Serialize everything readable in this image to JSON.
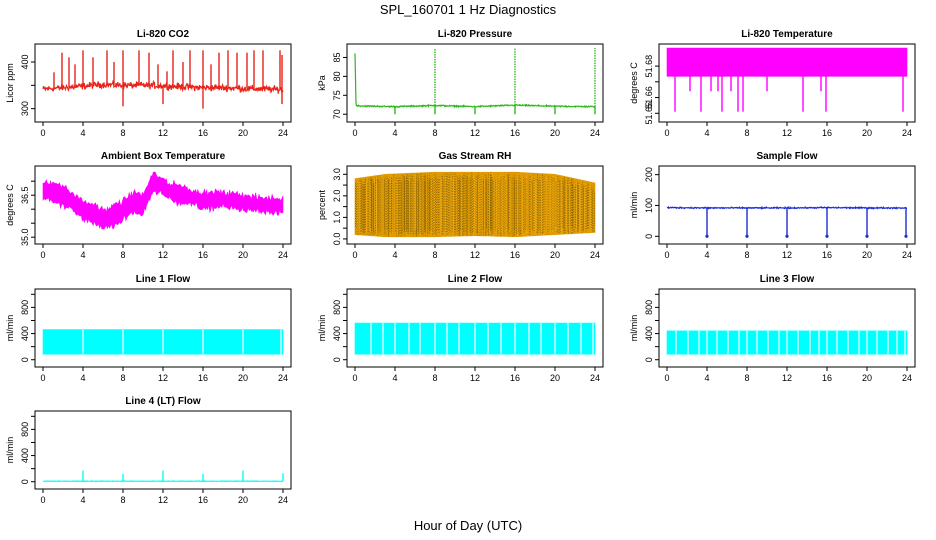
{
  "figure": {
    "title": "SPL_160701  1 Hz Diagnostics",
    "xlabel": "Hour of Day (UTC)"
  },
  "chart_data": [
    {
      "type": "line",
      "title": "Li-820 CO2",
      "ylabel": "Licor ppm",
      "color": "#e8231a",
      "xlim": [
        0,
        24
      ],
      "xticks": [
        0,
        4,
        8,
        12,
        16,
        20,
        24
      ],
      "ylim": [
        280,
        430
      ],
      "yticks": [
        300,
        350,
        400
      ],
      "ytick_labels": [
        "300",
        "",
        "400"
      ],
      "style": "noisy",
      "sd": 5,
      "x": [
        0,
        2,
        4,
        6,
        8,
        10,
        12,
        14,
        16,
        18,
        20,
        22,
        24
      ],
      "y": [
        342,
        345,
        348,
        352,
        350,
        350,
        349,
        347,
        345,
        345,
        343,
        342,
        341
      ],
      "spikes_up": [
        [
          1.1,
          378
        ],
        [
          1.9,
          420
        ],
        [
          2.6,
          410
        ],
        [
          3.2,
          395
        ],
        [
          4.0,
          425
        ],
        [
          5.0,
          410
        ],
        [
          6.4,
          425
        ],
        [
          7.1,
          400
        ],
        [
          8.0,
          425
        ],
        [
          9.6,
          425
        ],
        [
          10.6,
          420
        ],
        [
          11.5,
          395
        ],
        [
          12.4,
          380
        ],
        [
          13.0,
          425
        ],
        [
          14.0,
          400
        ],
        [
          14.7,
          425
        ],
        [
          16.0,
          425
        ],
        [
          16.8,
          395
        ],
        [
          17.6,
          420
        ],
        [
          18.5,
          425
        ],
        [
          19.4,
          420
        ],
        [
          20.4,
          420
        ],
        [
          21.1,
          425
        ],
        [
          22.0,
          425
        ],
        [
          23.7,
          425
        ],
        [
          23.9,
          415
        ]
      ],
      "spikes_down": [
        [
          8.0,
          305
        ],
        [
          12.0,
          310
        ],
        [
          16.0,
          300
        ],
        [
          23.9,
          310
        ]
      ]
    },
    {
      "type": "line",
      "title": "Li-820 Pressure",
      "ylabel": "kPa",
      "color": "#2fb81c",
      "xlim": [
        0,
        24
      ],
      "xticks": [
        0,
        4,
        8,
        12,
        16,
        20,
        24
      ],
      "ylim": [
        69,
        87.5
      ],
      "yticks": [
        70,
        75,
        80,
        85
      ],
      "ytick_labels": [
        "70",
        "75",
        "80",
        "85"
      ],
      "style": "line",
      "sd": 0.12,
      "x": [
        0,
        0.1,
        0.4,
        4,
        8,
        12,
        16,
        20,
        24
      ],
      "y": [
        86,
        72.4,
        72.2,
        72.0,
        72.3,
        72.0,
        72.4,
        72.1,
        72.0
      ],
      "spikes_up": [
        [
          8.0,
          87.5
        ],
        [
          16.0,
          87.5
        ],
        [
          24.0,
          87.5
        ]
      ],
      "spikes_down": [
        [
          4.0,
          70
        ],
        [
          8.0,
          70
        ],
        [
          12.0,
          70
        ],
        [
          16.0,
          70
        ],
        [
          20.0,
          70
        ],
        [
          24.0,
          70
        ]
      ]
    },
    {
      "type": "band",
      "title": "Li-820 Temperature",
      "ylabel": "degrees C",
      "color": "#ff00ff",
      "xlim": [
        0,
        24
      ],
      "xticks": [
        0,
        4,
        8,
        12,
        16,
        20,
        24
      ],
      "ylim": [
        51.647,
        51.6915
      ],
      "yticks": [
        51.65,
        51.66,
        51.67,
        51.68
      ],
      "ytick_labels": [
        "51.65",
        "51.66",
        "",
        "51.68"
      ],
      "band": [
        [
          0,
          51.6735,
          51.6915
        ],
        [
          24,
          51.6735,
          51.6915
        ]
      ],
      "spikes_down": [
        [
          0.8,
          51.651
        ],
        [
          2.3,
          51.664
        ],
        [
          3.4,
          51.651
        ],
        [
          4.4,
          51.664
        ],
        [
          5.1,
          51.664
        ],
        [
          5.5,
          51.651
        ],
        [
          6.4,
          51.664
        ],
        [
          7.1,
          51.651
        ],
        [
          7.6,
          51.651
        ],
        [
          10.0,
          51.664
        ],
        [
          13.6,
          51.651
        ],
        [
          15.4,
          51.664
        ],
        [
          15.9,
          51.651
        ],
        [
          23.6,
          51.651
        ]
      ]
    },
    {
      "type": "band",
      "title": "Ambient Box Temperature",
      "ylabel": "degrees C",
      "color": "#ff00ff",
      "xlim": [
        0,
        24
      ],
      "xticks": [
        0,
        4,
        8,
        12,
        16,
        20,
        24
      ],
      "ylim": [
        34.9,
        37.4
      ],
      "yticks": [
        35.0,
        35.5,
        36.0,
        36.5,
        37.0
      ],
      "ytick_labels": [
        "35.0",
        "",
        "",
        "36.5",
        ""
      ],
      "band": [
        [
          0,
          36.4,
          36.9
        ],
        [
          1,
          36.3,
          37.0
        ],
        [
          2,
          36.1,
          36.8
        ],
        [
          3,
          36.0,
          36.6
        ],
        [
          4,
          35.6,
          36.3
        ],
        [
          5,
          35.5,
          36.2
        ],
        [
          6,
          35.3,
          36.0
        ],
        [
          7,
          35.4,
          36.1
        ],
        [
          8,
          35.6,
          36.3
        ],
        [
          9,
          35.9,
          36.6
        ],
        [
          10,
          35.8,
          36.5
        ],
        [
          10.6,
          36.3,
          37.0
        ],
        [
          11,
          36.6,
          37.3
        ],
        [
          12,
          36.5,
          37.1
        ],
        [
          13,
          36.3,
          36.9
        ],
        [
          14,
          36.2,
          36.8
        ],
        [
          15,
          36.2,
          36.7
        ],
        [
          16,
          36.0,
          36.6
        ],
        [
          18,
          36.1,
          36.6
        ],
        [
          20,
          36.0,
          36.5
        ],
        [
          22,
          35.9,
          36.4
        ],
        [
          24,
          35.9,
          36.4
        ]
      ]
    },
    {
      "type": "band",
      "title": "Gas Stream RH",
      "ylabel": "percent",
      "color": "#e09a00",
      "xlim": [
        0,
        24
      ],
      "xticks": [
        0,
        4,
        8,
        12,
        16,
        20,
        24
      ],
      "ylim": [
        -0.05,
        3.2
      ],
      "yticks": [
        0.0,
        0.5,
        1.0,
        1.5,
        2.0,
        2.5,
        3.0
      ],
      "ytick_labels": [
        "0.0",
        "",
        "1.0",
        "",
        "2.0",
        "",
        "3.0"
      ],
      "band": [
        [
          0,
          0.2,
          2.8
        ],
        [
          3,
          0.1,
          3.0
        ],
        [
          8,
          0.1,
          3.1
        ],
        [
          12,
          0.15,
          3.1
        ],
        [
          16,
          0.1,
          3.1
        ],
        [
          20,
          0.2,
          3.0
        ],
        [
          24,
          0.3,
          2.6
        ]
      ]
    },
    {
      "type": "line",
      "title": "Sample Flow",
      "ylabel": "ml/min",
      "color": "#1a2dd6",
      "xlim": [
        0,
        24
      ],
      "xticks": [
        0,
        4,
        8,
        12,
        16,
        20,
        24
      ],
      "ylim": [
        -12,
        215
      ],
      "yticks": [
        0,
        100,
        200
      ],
      "ytick_labels": [
        "0",
        "100",
        "200"
      ],
      "style": "noisy",
      "sd": 1.5,
      "x": [
        0,
        4,
        8,
        12,
        16,
        20,
        24
      ],
      "y": [
        93,
        92,
        92,
        92,
        93,
        92,
        92
      ],
      "spikes_down": [
        [
          4.0,
          0
        ],
        [
          8.0,
          0
        ],
        [
          12.0,
          0
        ],
        [
          16.0,
          0
        ],
        [
          20.0,
          0
        ],
        [
          23.9,
          0
        ]
      ]
    },
    {
      "type": "band",
      "title": "Line 1 Flow",
      "ylabel": "ml/min",
      "color": "#00ffff",
      "xlim": [
        0,
        24
      ],
      "xticks": [
        0,
        4,
        8,
        12,
        16,
        20,
        24
      ],
      "ylim": [
        -50,
        1020
      ],
      "yticks": [
        0,
        200,
        400,
        600,
        800,
        1000
      ],
      "ytick_labels": [
        "0",
        "",
        "400",
        "",
        "800",
        ""
      ],
      "band": [
        [
          0,
          85,
          460
        ],
        [
          24,
          85,
          460
        ]
      ],
      "gaps": [
        4,
        8,
        12,
        16,
        20,
        23.8
      ]
    },
    {
      "type": "band",
      "title": "Line 2 Flow",
      "ylabel": "ml/min",
      "color": "#00ffff",
      "xlim": [
        0,
        24
      ],
      "xticks": [
        0,
        4,
        8,
        12,
        16,
        20,
        24
      ],
      "ylim": [
        -50,
        1020
      ],
      "yticks": [
        0,
        200,
        400,
        600,
        800,
        1000
      ],
      "ytick_labels": [
        "0",
        "",
        "400",
        "",
        "800",
        ""
      ],
      "band": [
        [
          0,
          85,
          560
        ],
        [
          24,
          85,
          560
        ]
      ],
      "gaps": [
        1.6,
        2.8,
        4,
        5.4,
        6.5,
        8,
        9.2,
        10.4,
        12,
        13.3,
        14.6,
        16,
        17.4,
        18.6,
        20,
        21.3,
        22.6,
        23.8
      ]
    },
    {
      "type": "band",
      "title": "Line 3 Flow",
      "ylabel": "ml/min",
      "color": "#00ffff",
      "xlim": [
        0,
        24
      ],
      "xticks": [
        0,
        4,
        8,
        12,
        16,
        20,
        24
      ],
      "ylim": [
        -50,
        1020
      ],
      "yticks": [
        0,
        200,
        400,
        600,
        800,
        1000
      ],
      "ytick_labels": [
        "0",
        "",
        "400",
        "",
        "800",
        ""
      ],
      "band": [
        [
          0,
          85,
          440
        ],
        [
          24,
          85,
          440
        ]
      ],
      "gaps": [
        0.9,
        2.1,
        3.2,
        4,
        5.0,
        6.1,
        7.2,
        8,
        9.0,
        10.1,
        11.2,
        12,
        13.1,
        14.3,
        15.2,
        16,
        17.0,
        18.1,
        19.2,
        20,
        21.0,
        22.1,
        23.0,
        23.8
      ]
    },
    {
      "type": "line",
      "title": "Line 4 (LT) Flow",
      "ylabel": "ml/min",
      "color": "#00ffff",
      "xlim": [
        0,
        24
      ],
      "xticks": [
        0,
        4,
        8,
        12,
        16,
        20,
        24
      ],
      "ylim": [
        -50,
        1020
      ],
      "yticks": [
        0,
        200,
        400,
        600,
        800,
        1000
      ],
      "ytick_labels": [
        "0",
        "",
        "400",
        "",
        "800",
        ""
      ],
      "style": "noisy",
      "sd": 3,
      "x": [
        0,
        24
      ],
      "y": [
        8,
        8
      ],
      "spikes_up": [
        [
          4.0,
          170
        ],
        [
          8.0,
          120
        ],
        [
          12.0,
          170
        ],
        [
          16.0,
          120
        ],
        [
          20.0,
          170
        ],
        [
          24.0,
          130
        ]
      ]
    }
  ]
}
